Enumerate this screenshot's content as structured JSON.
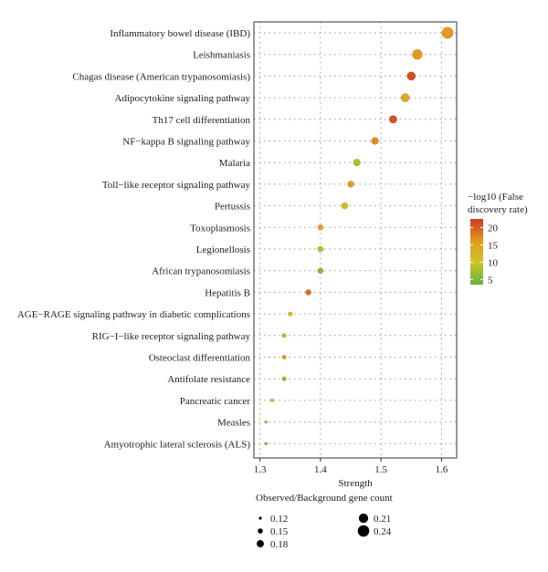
{
  "chart_data": {
    "type": "scatter",
    "title": "",
    "xlabel": "Strength",
    "ylabel": "",
    "xlim": [
      1.29,
      1.625
    ],
    "xticks": [
      1.3,
      1.4,
      1.5,
      1.6
    ],
    "xtick_labels": [
      "1.3",
      "1.4",
      "1.5",
      "1.6"
    ],
    "grid": true,
    "categories": [
      "Inflammatory bowel disease (IBD)",
      "Leishmaniasis",
      "Chagas disease (American trypanosomiasis)",
      "Adipocytokine signaling pathway",
      "Th17 cell differentiation",
      "NF−kappa B signaling pathway",
      "Malaria",
      "Toll−like receptor signaling pathway",
      "Pertussis",
      "Toxoplasmosis",
      "Legionellosis",
      "African trypanosomiasis",
      "Hepatitis B",
      "AGE−RAGE signaling pathway in diabetic complications",
      "RIG−I−like receptor signaling pathway",
      "Osteoclast differentiation",
      "Antifolate resistance",
      "Pancreatic cancer",
      "Measles",
      "Amyotrophic lateral sclerosis (ALS)"
    ],
    "points": [
      {
        "term": "Inflammatory bowel disease (IBD)",
        "strength": 1.61,
        "gene_ratio": 0.24,
        "neg_log10_fdr": 16
      },
      {
        "term": "Leishmaniasis",
        "strength": 1.56,
        "gene_ratio": 0.22,
        "neg_log10_fdr": 16
      },
      {
        "term": "Chagas disease (American trypanosomiasis)",
        "strength": 1.55,
        "gene_ratio": 0.2,
        "neg_log10_fdr": 21
      },
      {
        "term": "Adipocytokine signaling pathway",
        "strength": 1.54,
        "gene_ratio": 0.2,
        "neg_log10_fdr": 14
      },
      {
        "term": "Th17 cell differentiation",
        "strength": 1.52,
        "gene_ratio": 0.19,
        "neg_log10_fdr": 21
      },
      {
        "term": "NF−kappa B signaling pathway",
        "strength": 1.49,
        "gene_ratio": 0.18,
        "neg_log10_fdr": 17
      },
      {
        "term": "Malaria",
        "strength": 1.46,
        "gene_ratio": 0.18,
        "neg_log10_fdr": 8
      },
      {
        "term": "Toll−like receptor signaling pathway",
        "strength": 1.45,
        "gene_ratio": 0.17,
        "neg_log10_fdr": 16
      },
      {
        "term": "Pertussis",
        "strength": 1.44,
        "gene_ratio": 0.17,
        "neg_log10_fdr": 12
      },
      {
        "term": "Toxoplasmosis",
        "strength": 1.4,
        "gene_ratio": 0.16,
        "neg_log10_fdr": 15
      },
      {
        "term": "Legionellosis",
        "strength": 1.4,
        "gene_ratio": 0.16,
        "neg_log10_fdr": 8
      },
      {
        "term": "African trypanosomiasis",
        "strength": 1.4,
        "gene_ratio": 0.16,
        "neg_log10_fdr": 6
      },
      {
        "term": "Hepatitis B",
        "strength": 1.38,
        "gene_ratio": 0.16,
        "neg_log10_fdr": 19
      },
      {
        "term": "AGE−RAGE signaling pathway in diabetic complications",
        "strength": 1.35,
        "gene_ratio": 0.14,
        "neg_log10_fdr": 12
      },
      {
        "term": "RIG−I−like receptor signaling pathway",
        "strength": 1.34,
        "gene_ratio": 0.14,
        "neg_log10_fdr": 8
      },
      {
        "term": "Osteoclast differentiation",
        "strength": 1.34,
        "gene_ratio": 0.14,
        "neg_log10_fdr": 15
      },
      {
        "term": "Antifolate resistance",
        "strength": 1.34,
        "gene_ratio": 0.14,
        "neg_log10_fdr": 6
      },
      {
        "term": "Pancreatic cancer",
        "strength": 1.32,
        "gene_ratio": 0.13,
        "neg_log10_fdr": 10
      },
      {
        "term": "Measles",
        "strength": 1.31,
        "gene_ratio": 0.12,
        "neg_log10_fdr": 15
      },
      {
        "term": "Amyotrophic lateral sclerosis (ALS)",
        "strength": 1.31,
        "gene_ratio": 0.12,
        "neg_log10_fdr": 5
      }
    ],
    "color_legend": {
      "title_lines": [
        "−log10 (False",
        "discovery rate)"
      ],
      "ticks": [
        5,
        10,
        15,
        20
      ],
      "tick_labels": [
        "5",
        "10",
        "15",
        "20"
      ],
      "range": [
        3.5,
        22.5
      ],
      "colors": [
        "#6aae3c",
        "#cbc62a",
        "#e3991f",
        "#cf3a21"
      ],
      "placement": "right"
    },
    "size_legend": {
      "title": "Observed/Background gene count",
      "entries": [
        {
          "value": 0.12,
          "label": "0.12"
        },
        {
          "value": 0.15,
          "label": "0.15"
        },
        {
          "value": 0.18,
          "label": "0.18"
        },
        {
          "value": 0.21,
          "label": "0.21"
        },
        {
          "value": 0.24,
          "label": "0.24"
        }
      ],
      "placement": "bottom"
    }
  }
}
